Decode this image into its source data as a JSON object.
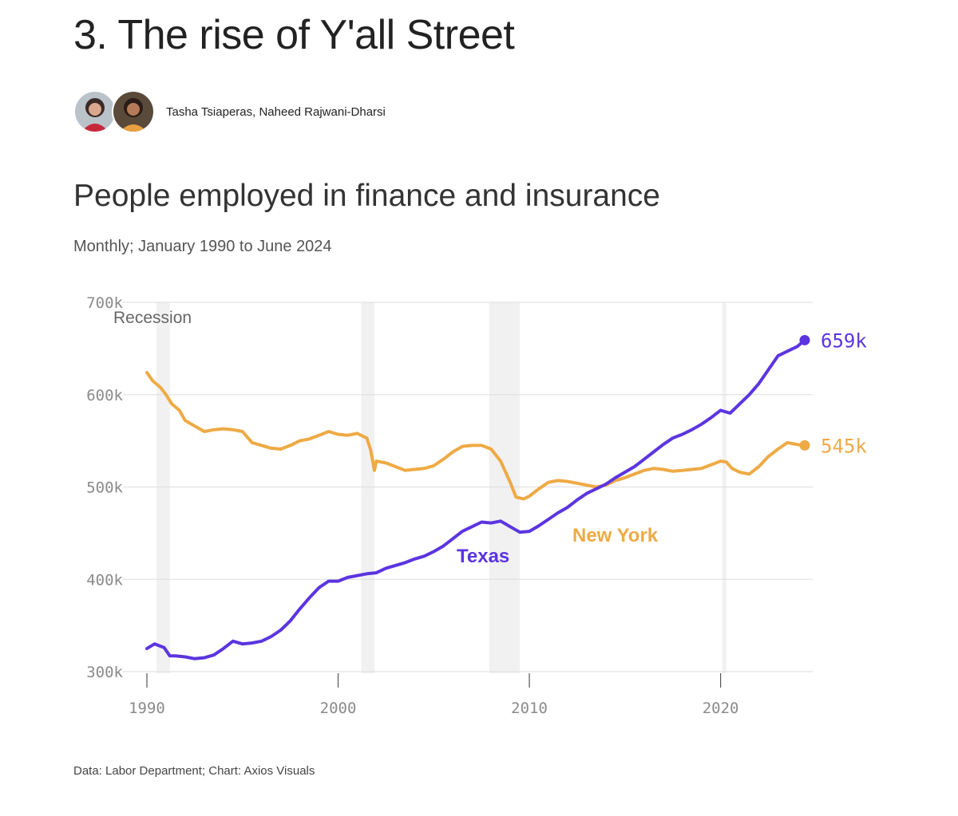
{
  "article": {
    "headline": "3. The rise of Y'all Street",
    "authors": "Tasha Tsiaperas, Naheed Rajwani-Dharsi"
  },
  "footer": {
    "source": "Data: Labor Department; Chart: Axios Visuals"
  },
  "colors": {
    "texas": "#5b35e0",
    "new_york": "#eeaa45",
    "recession_band": "#f1f1f1",
    "gridline": "#dedede"
  },
  "chart_data": {
    "type": "line",
    "title": "People employed in finance and insurance",
    "subtitle": "Monthly; January 1990 to June 2024",
    "xlabel": "",
    "ylabel": "",
    "xlim": [
      1990,
      2024.5
    ],
    "ylim": [
      300000,
      700000
    ],
    "x_ticks": [
      1990,
      2000,
      2010,
      2020
    ],
    "x_tick_labels": [
      "1990",
      "2000",
      "2010",
      "2020"
    ],
    "y_ticks": [
      300000,
      400000,
      500000,
      600000,
      700000
    ],
    "y_tick_labels": [
      "300k",
      "400k",
      "500k",
      "600k",
      "700k"
    ],
    "grid": true,
    "recessions": [
      {
        "start": 1990.5,
        "end": 1991.2
      },
      {
        "start": 2001.2,
        "end": 2001.9
      },
      {
        "start": 2007.9,
        "end": 2009.5
      },
      {
        "start": 2020.1,
        "end": 2020.3
      }
    ],
    "recession_label": "Recession",
    "series": [
      {
        "name": "Texas",
        "end_label": "659k",
        "x": [
          1990.0,
          1990.4,
          1990.9,
          1991.2,
          1991.5,
          1992.0,
          1992.5,
          1993.0,
          1993.5,
          1994.0,
          1994.5,
          1995.0,
          1995.5,
          1996.0,
          1996.5,
          1997.0,
          1997.5,
          1998.0,
          1998.5,
          1999.0,
          1999.5,
          2000.0,
          2000.5,
          2001.0,
          2001.5,
          2002.0,
          2002.5,
          2003.0,
          2003.5,
          2004.0,
          2004.5,
          2005.0,
          2005.5,
          2006.0,
          2006.5,
          2007.0,
          2007.5,
          2008.0,
          2008.5,
          2009.0,
          2009.5,
          2010.0,
          2010.5,
          2011.0,
          2011.5,
          2012.0,
          2012.5,
          2013.0,
          2013.5,
          2014.0,
          2014.5,
          2015.0,
          2015.5,
          2016.0,
          2016.5,
          2017.0,
          2017.5,
          2018.0,
          2018.5,
          2019.0,
          2019.5,
          2020.0,
          2020.5,
          2021.0,
          2021.5,
          2022.0,
          2022.5,
          2023.0,
          2023.5,
          2024.0,
          2024.4
        ],
        "values": [
          325000,
          330000,
          326000,
          317000,
          317000,
          316000,
          314000,
          315000,
          318000,
          325000,
          333000,
          330000,
          331000,
          333000,
          338000,
          345000,
          355000,
          368000,
          380000,
          391000,
          398000,
          398000,
          402000,
          404000,
          406000,
          407000,
          412000,
          415000,
          418000,
          422000,
          425000,
          430000,
          436000,
          444000,
          452000,
          457000,
          462000,
          461000,
          463000,
          457000,
          451000,
          452000,
          458000,
          465000,
          472000,
          478000,
          486000,
          493000,
          498000,
          503000,
          510000,
          516000,
          522000,
          530000,
          538000,
          546000,
          553000,
          557000,
          562000,
          568000,
          575000,
          583000,
          580000,
          590000,
          600000,
          612000,
          627000,
          642000,
          647000,
          652000,
          659000
        ]
      },
      {
        "name": "New York",
        "end_label": "545k",
        "x": [
          1990.0,
          1990.3,
          1990.7,
          1991.0,
          1991.3,
          1991.7,
          1992.0,
          1992.5,
          1993.0,
          1993.5,
          1994.0,
          1994.5,
          1995.0,
          1995.5,
          1996.0,
          1996.5,
          1997.0,
          1997.5,
          1998.0,
          1998.5,
          1999.0,
          1999.5,
          2000.0,
          2000.5,
          2001.0,
          2001.5,
          2001.7,
          2001.9,
          2002.0,
          2002.5,
          2003.0,
          2003.5,
          2004.0,
          2004.5,
          2005.0,
          2005.5,
          2006.0,
          2006.5,
          2007.0,
          2007.5,
          2008.0,
          2008.5,
          2009.0,
          2009.3,
          2009.7,
          2010.0,
          2010.5,
          2011.0,
          2011.5,
          2012.0,
          2012.5,
          2013.0,
          2013.5,
          2014.0,
          2014.5,
          2015.0,
          2015.5,
          2016.0,
          2016.5,
          2017.0,
          2017.5,
          2018.0,
          2018.5,
          2019.0,
          2019.5,
          2020.0,
          2020.3,
          2020.6,
          2021.0,
          2021.5,
          2022.0,
          2022.5,
          2023.0,
          2023.5,
          2024.0,
          2024.4
        ],
        "values": [
          624000,
          615000,
          608000,
          600000,
          590000,
          583000,
          572000,
          566000,
          560000,
          562000,
          563000,
          562000,
          560000,
          548000,
          545000,
          542000,
          541000,
          545000,
          550000,
          552000,
          556000,
          560000,
          557000,
          556000,
          558000,
          553000,
          540000,
          518000,
          528000,
          526000,
          522000,
          518000,
          519000,
          520000,
          523000,
          530000,
          538000,
          544000,
          545000,
          545000,
          541000,
          528000,
          505000,
          489000,
          487000,
          490000,
          498000,
          505000,
          507000,
          506000,
          504000,
          502000,
          500000,
          502000,
          507000,
          510000,
          514000,
          518000,
          520000,
          519000,
          517000,
          518000,
          519000,
          520000,
          524000,
          528000,
          527000,
          520000,
          516000,
          514000,
          522000,
          533000,
          541000,
          548000,
          546000,
          545000
        ]
      }
    ]
  }
}
